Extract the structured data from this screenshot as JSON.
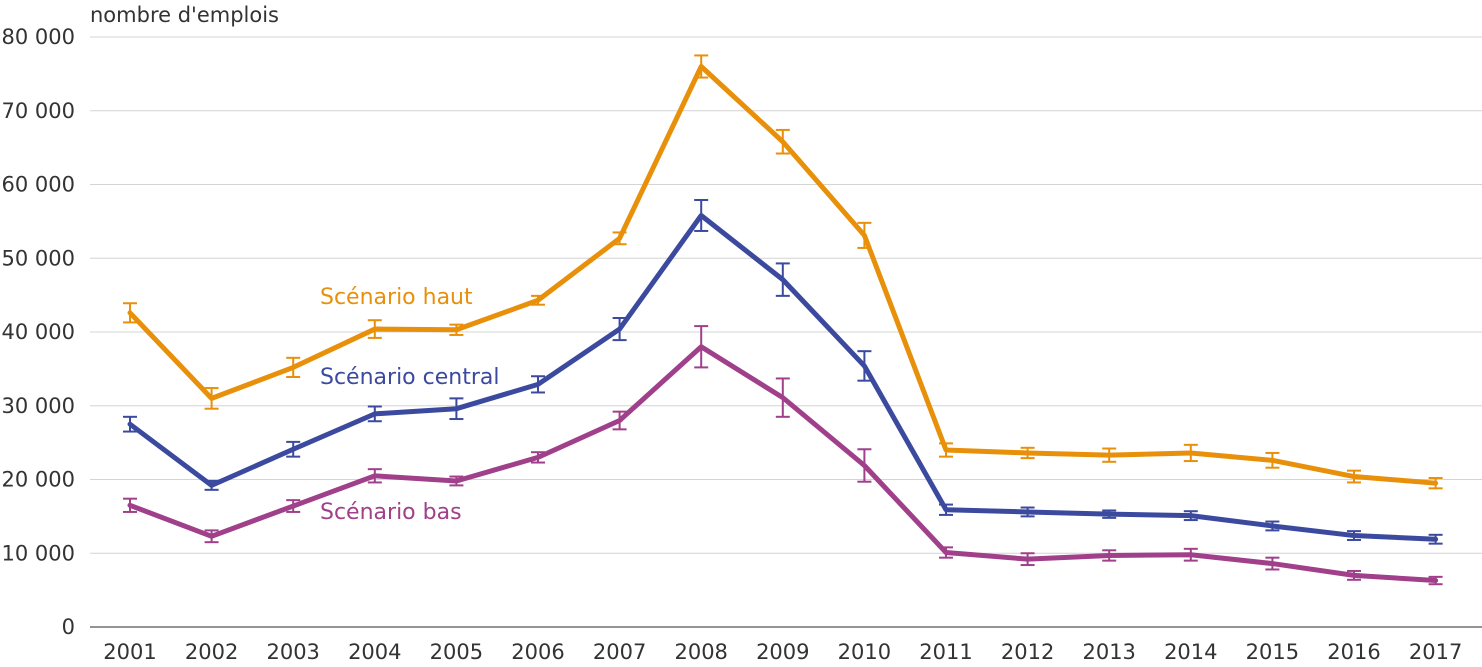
{
  "chart_data": {
    "type": "line",
    "title": "",
    "ylabel": "nombre d'emplois",
    "xlabel": "",
    "ylim": [
      0,
      80000
    ],
    "yticks": [
      0,
      10000,
      20000,
      30000,
      40000,
      50000,
      60000,
      70000,
      80000
    ],
    "ytick_labels": [
      "0",
      "10 000",
      "20 000",
      "30 000",
      "40 000",
      "50 000",
      "60 000",
      "70 000",
      "80 000"
    ],
    "grid": true,
    "error_bars": true,
    "categories": [
      "2001",
      "2002",
      "2003",
      "2004",
      "2005",
      "2006",
      "2007",
      "2008",
      "2009",
      "2010",
      "2011",
      "2012",
      "2013",
      "2014",
      "2015",
      "2016",
      "2017"
    ],
    "series": [
      {
        "name": "Scénario haut",
        "color": "#e8900a",
        "values": [
          42600,
          31000,
          35200,
          40400,
          40300,
          44300,
          52700,
          76000,
          65800,
          53100,
          24000,
          23600,
          23300,
          23600,
          22600,
          20400,
          19500
        ],
        "errors": [
          1300,
          1400,
          1300,
          1200,
          700,
          600,
          800,
          1500,
          1600,
          1700,
          900,
          700,
          900,
          1100,
          1000,
          800,
          700
        ]
      },
      {
        "name": "Scénario central",
        "color": "#3b4a9e",
        "values": [
          27500,
          19200,
          24100,
          28900,
          29600,
          32900,
          40400,
          55800,
          47100,
          35400,
          15900,
          15600,
          15300,
          15100,
          13700,
          12400,
          11900
        ],
        "errors": [
          1000,
          600,
          1000,
          1000,
          1400,
          1100,
          1500,
          2100,
          2200,
          2000,
          700,
          600,
          500,
          600,
          600,
          600,
          600
        ]
      },
      {
        "name": "Scénario bas",
        "color": "#a0408a",
        "values": [
          16500,
          12300,
          16400,
          20500,
          19800,
          23000,
          28000,
          38000,
          31100,
          21900,
          10100,
          9200,
          9700,
          9800,
          8600,
          7000,
          6300
        ],
        "errors": [
          900,
          800,
          800,
          900,
          600,
          700,
          1200,
          2800,
          2600,
          2200,
          700,
          800,
          700,
          800,
          800,
          600,
          500
        ]
      }
    ]
  }
}
